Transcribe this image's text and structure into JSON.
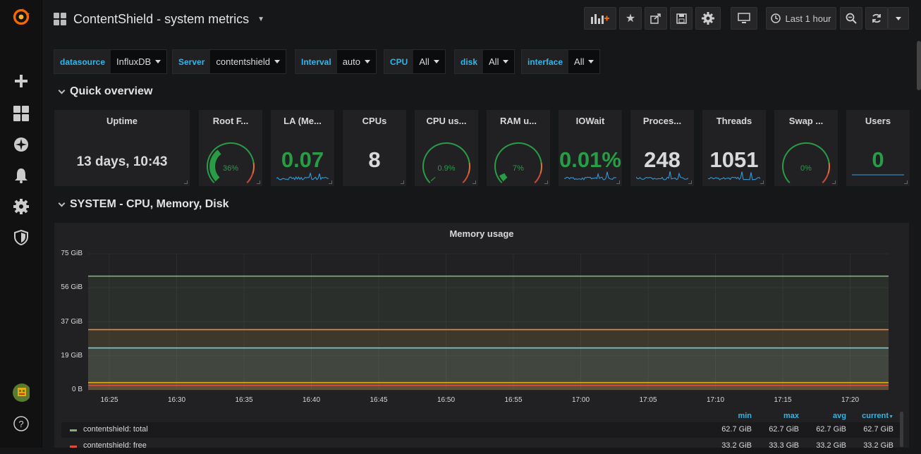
{
  "app": {
    "title": "ContentShield - system metrics"
  },
  "sidebar": {
    "items": [
      "grafana-logo",
      "create",
      "dashboards",
      "explore",
      "alerting",
      "configuration",
      "shield",
      "user",
      "help"
    ]
  },
  "toolbar": {
    "time_range": "Last 1 hour",
    "buttons": [
      "add-panel",
      "star",
      "share",
      "save",
      "settings",
      "tv-mode",
      "zoom-out",
      "refresh",
      "refresh-interval"
    ]
  },
  "variables": [
    {
      "label": "datasource",
      "value": "InfluxDB"
    },
    {
      "label": "Server",
      "value": "contentshield"
    },
    {
      "label": "Interval",
      "value": "auto"
    },
    {
      "label": "CPU",
      "value": "All"
    },
    {
      "label": "disk",
      "value": "All"
    },
    {
      "label": "interface",
      "value": "All"
    }
  ],
  "rows": [
    {
      "title": "Quick overview"
    },
    {
      "title": "SYSTEM - CPU, Memory, Disk"
    }
  ],
  "stats": [
    {
      "title": "Uptime",
      "value": "13 days, 10:43",
      "kind": "text"
    },
    {
      "title": "Root F...",
      "value": "36%",
      "kind": "gauge",
      "fraction": 0.36,
      "color": "#299c46"
    },
    {
      "title": "LA (Me...",
      "value": "0.07",
      "kind": "spark",
      "color": "#299c46"
    },
    {
      "title": "CPUs",
      "value": "8",
      "kind": "plain"
    },
    {
      "title": "CPU us...",
      "value": "0.9%",
      "kind": "gauge",
      "fraction": 0.009,
      "color": "#299c46"
    },
    {
      "title": "RAM u...",
      "value": "7%",
      "kind": "gauge",
      "fraction": 0.07,
      "color": "#299c46"
    },
    {
      "title": "IOWait",
      "value": "0.01%",
      "kind": "spark",
      "color": "#299c46"
    },
    {
      "title": "Proces...",
      "value": "248",
      "kind": "spark",
      "color": "#d8d9da"
    },
    {
      "title": "Threads",
      "value": "1051",
      "kind": "spark",
      "color": "#d8d9da"
    },
    {
      "title": "Swap ...",
      "value": "0%",
      "kind": "gauge",
      "fraction": 0.0,
      "color": "#299c46"
    },
    {
      "title": "Users",
      "value": "0",
      "kind": "flat",
      "color": "#299c46"
    }
  ],
  "memory_panel": {
    "title": "Memory usage",
    "legend_headers": [
      "min",
      "max",
      "avg",
      "current"
    ],
    "legend": [
      {
        "name": "contentshield: total",
        "min": "62.7 GiB",
        "max": "62.7 GiB",
        "avg": "62.7 GiB",
        "current": "62.7 GiB",
        "color": "#7eb26d"
      },
      {
        "name": "contentshield: free",
        "min": "33.2 GiB",
        "max": "33.3 GiB",
        "avg": "33.2 GiB",
        "current": "33.2 GiB",
        "color": "#e24d42"
      }
    ]
  },
  "chart_data": {
    "type": "area",
    "title": "Memory usage",
    "xlabel": "",
    "ylabel": "",
    "x_ticks": [
      "16:25",
      "16:30",
      "16:35",
      "16:40",
      "16:45",
      "16:50",
      "16:55",
      "17:00",
      "17:05",
      "17:10",
      "17:15",
      "17:20"
    ],
    "y_ticks": [
      "0 B",
      "19 GiB",
      "37 GiB",
      "56 GiB",
      "75 GiB"
    ],
    "ylim": [
      0,
      75
    ],
    "grid": true,
    "series": [
      {
        "name": "contentshield: total",
        "value": 62.7,
        "color": "#7eb26d"
      },
      {
        "name": "contentshield: free",
        "value": 33.2,
        "color": "#ef843c"
      },
      {
        "value": 23.1,
        "color": "#6ed0e0"
      },
      {
        "value": 4.0,
        "color": "#e5ac0e"
      },
      {
        "value": 2.5,
        "color": "#e24d42"
      }
    ]
  }
}
